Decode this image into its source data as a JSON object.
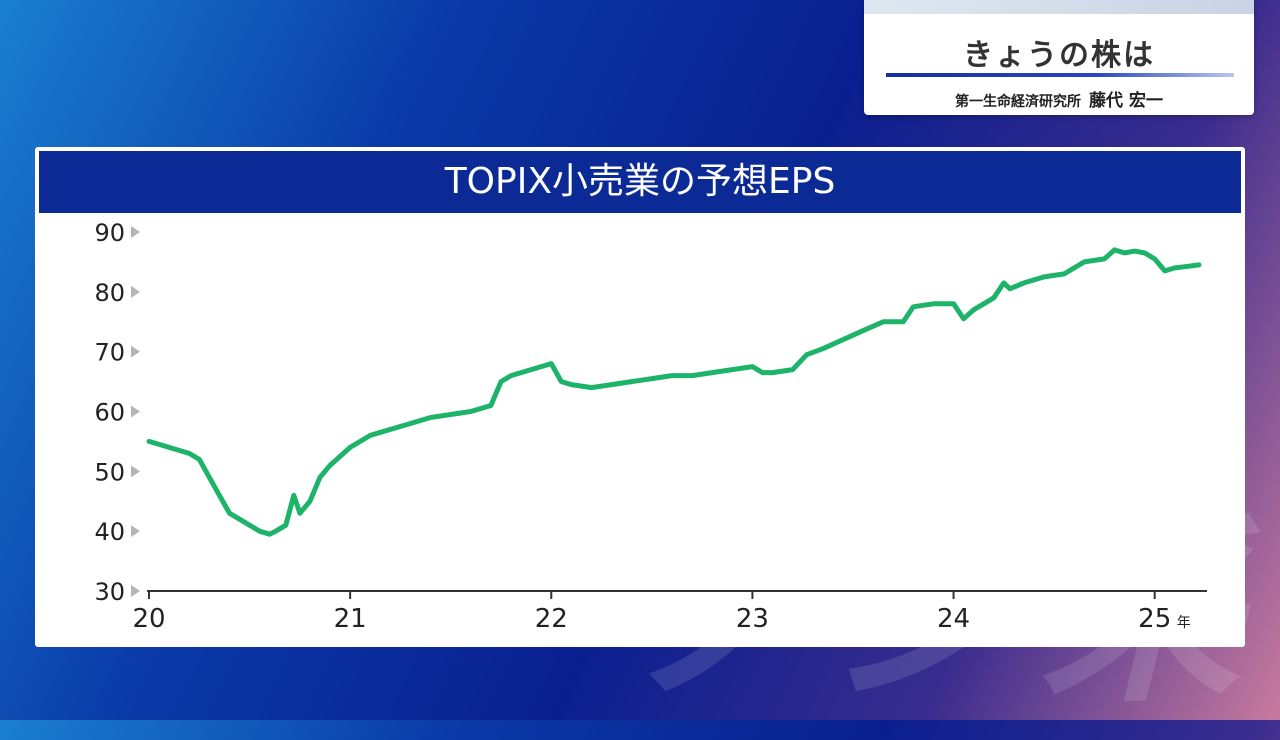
{
  "caption": {
    "title": "きょうの株は",
    "org": "第一生命経済研究所",
    "name": "藤代 宏一"
  },
  "chart_data": {
    "type": "line",
    "title": "TOPIX小売業の予想EPS",
    "xlabel": "",
    "ylabel": "",
    "xlim": [
      20.0,
      25.28
    ],
    "ylim": [
      30,
      90
    ],
    "y_ticks": [
      90,
      80,
      70,
      60,
      50,
      40,
      30
    ],
    "x_ticks": [
      {
        "value": 20,
        "label": "20"
      },
      {
        "value": 21,
        "label": "21"
      },
      {
        "value": 22,
        "label": "22"
      },
      {
        "value": 23,
        "label": "23"
      },
      {
        "value": 24,
        "label": "24"
      },
      {
        "value": 25,
        "label": "25"
      }
    ],
    "x_unit": "年",
    "grid": false,
    "line_color": "#1db46a",
    "series": [
      {
        "x": [
          20.0,
          20.05,
          20.1,
          20.15,
          20.2,
          20.25,
          20.3,
          20.35,
          20.4,
          20.45,
          20.5,
          20.55,
          20.6,
          20.63,
          20.68,
          20.72,
          20.75,
          20.8,
          20.85,
          20.9,
          20.95,
          21.0,
          21.05,
          21.1,
          21.2,
          21.3,
          21.4,
          21.5,
          21.6,
          21.7,
          21.75,
          21.8,
          21.9,
          22.0,
          22.05,
          22.1,
          22.2,
          22.3,
          22.4,
          22.5,
          22.6,
          22.7,
          22.8,
          22.9,
          23.0,
          23.05,
          23.1,
          23.2,
          23.27,
          23.35,
          23.45,
          23.55,
          23.65,
          23.75,
          23.8,
          23.9,
          24.0,
          24.05,
          24.1,
          24.2,
          24.25,
          24.28,
          24.35,
          24.45,
          24.55,
          24.65,
          24.75,
          24.8,
          24.85,
          24.9,
          24.95,
          25.0,
          25.05,
          25.1,
          25.15,
          25.22
        ],
        "values": [
          55,
          54.5,
          54,
          53.5,
          53,
          52,
          49,
          46,
          43,
          42,
          41,
          40,
          39.5,
          40,
          41,
          46,
          43,
          45,
          49,
          51,
          52.5,
          54,
          55,
          56,
          57,
          58,
          59,
          59.5,
          60,
          61,
          65,
          66,
          67,
          68,
          65,
          64.5,
          64,
          64.5,
          65,
          65.5,
          66,
          66,
          66.5,
          67,
          67.5,
          66.5,
          66.5,
          67,
          69.5,
          70.5,
          72,
          73.5,
          75,
          75,
          77.5,
          78,
          78,
          75.5,
          77,
          79,
          81.5,
          80.5,
          81.5,
          82.5,
          83,
          85,
          85.5,
          87,
          86.5,
          86.8,
          86.5,
          85.5,
          83.5,
          84,
          84.2,
          84.5
        ]
      }
    ]
  }
}
